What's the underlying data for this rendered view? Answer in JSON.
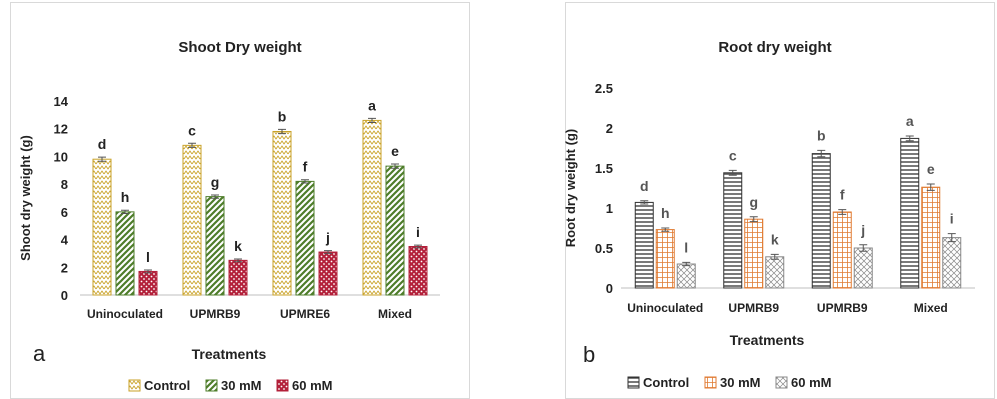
{
  "chart_data": [
    {
      "type": "bar",
      "panel_label": "a",
      "title": "Shoot Dry weight",
      "xlabel": "Treatments",
      "ylabel": "Shoot dry weight (g)",
      "ylim": [
        0,
        14
      ],
      "yticks": [
        0,
        2,
        4,
        6,
        8,
        10,
        12,
        14
      ],
      "grid": false,
      "legend": "bottom",
      "categories": [
        "Uninoculated",
        "UPMRB9",
        "UPMRE6",
        "Mixed"
      ],
      "series": [
        {
          "name": "Control",
          "values": [
            9.8,
            10.8,
            11.8,
            12.6
          ],
          "errors": [
            0.15,
            0.15,
            0.15,
            0.15
          ],
          "letters": [
            "d",
            "c",
            "b",
            "a"
          ],
          "color": "#c9a227",
          "pattern": "zigzag"
        },
        {
          "name": "30 mM",
          "values": [
            6.0,
            7.1,
            8.2,
            9.3
          ],
          "errors": [
            0.12,
            0.12,
            0.12,
            0.15
          ],
          "letters": [
            "h",
            "g",
            "f",
            "e"
          ],
          "color": "#4e7d2a",
          "pattern": "diagonal"
        },
        {
          "name": "60 mM",
          "values": [
            1.7,
            2.5,
            3.1,
            3.5
          ],
          "errors": [
            0.1,
            0.1,
            0.1,
            0.1
          ],
          "letters": [
            "l",
            "k",
            "j",
            "i"
          ],
          "color": "#b3203a",
          "pattern": "dots"
        }
      ]
    },
    {
      "type": "bar",
      "panel_label": "b",
      "title": "Root dry weight",
      "xlabel": "Treatments",
      "ylabel": "Root dry weight (g)",
      "ylim": [
        0,
        2.5
      ],
      "yticks": [
        0,
        0.5,
        1,
        1.5,
        2,
        2.5
      ],
      "grid": false,
      "legend": "bottom",
      "categories": [
        "Uninoculated",
        "UPMRB9",
        "UPMRB9",
        "Mixed"
      ],
      "series": [
        {
          "name": "Control",
          "values": [
            1.07,
            1.44,
            1.68,
            1.87
          ],
          "errors": [
            0.02,
            0.03,
            0.04,
            0.03
          ],
          "letters": [
            "d",
            "c",
            "b",
            "a"
          ],
          "color": "#333333",
          "pattern": "horizontal"
        },
        {
          "name": "30 mM",
          "values": [
            0.73,
            0.86,
            0.95,
            1.26
          ],
          "errors": [
            0.02,
            0.03,
            0.03,
            0.04
          ],
          "letters": [
            "h",
            "g",
            "f",
            "e"
          ],
          "color": "#e07a30",
          "pattern": "grid"
        },
        {
          "name": "60 mM",
          "values": [
            0.3,
            0.39,
            0.5,
            0.63
          ],
          "errors": [
            0.02,
            0.03,
            0.04,
            0.05
          ],
          "letters": [
            "l",
            "k",
            "j",
            "i"
          ],
          "color": "#888888",
          "pattern": "diamond"
        }
      ]
    }
  ]
}
